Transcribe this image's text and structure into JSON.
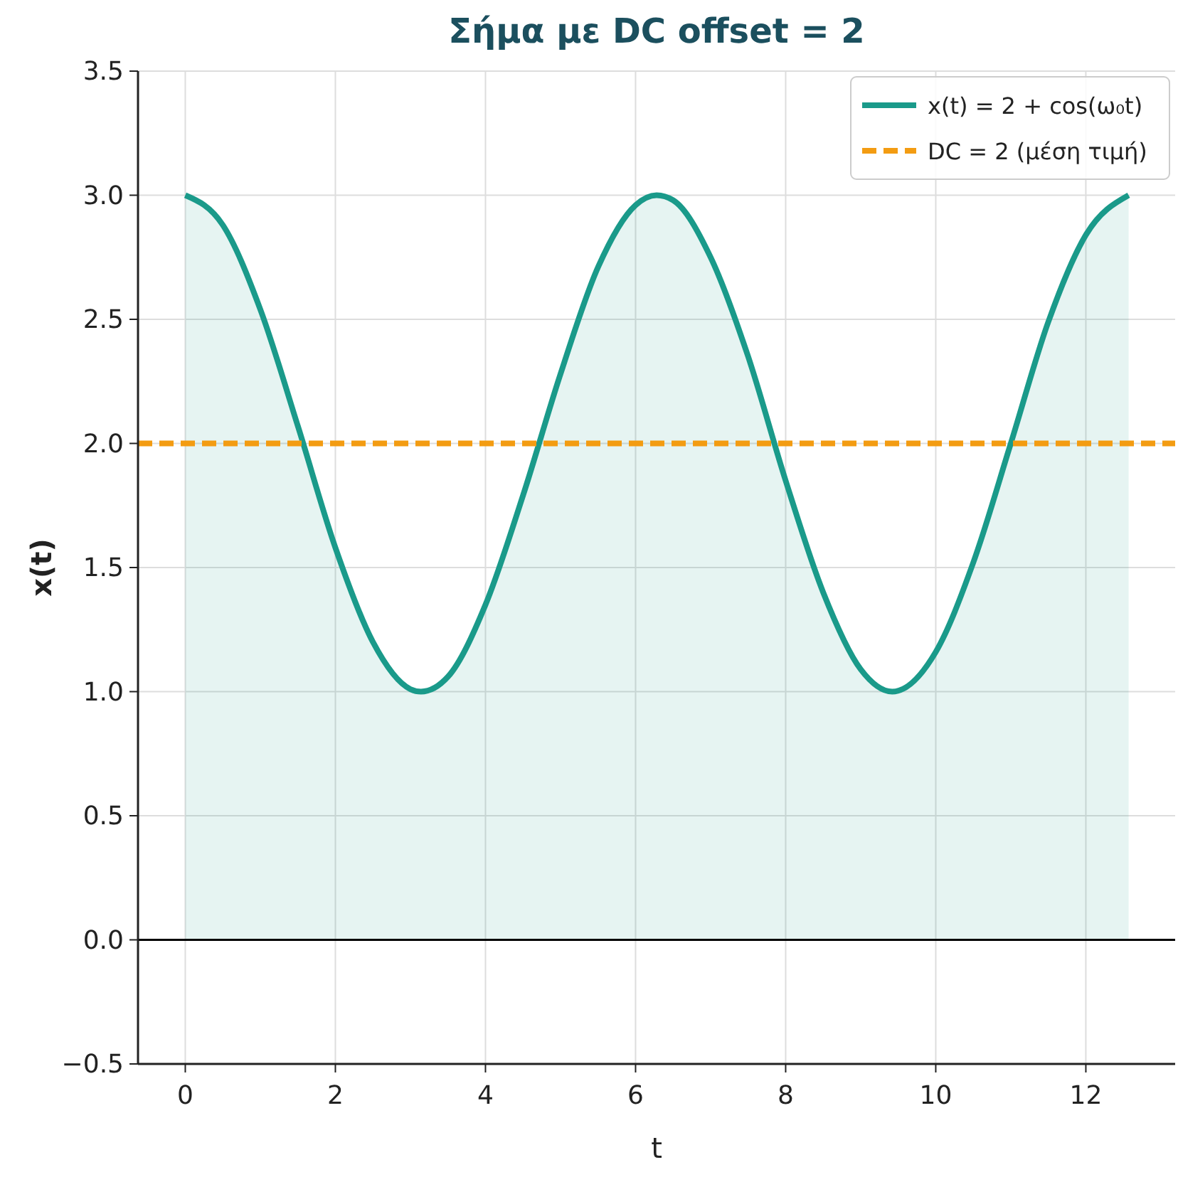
{
  "chart_data": {
    "type": "area",
    "title": "Σήμα με DC offset = 2",
    "xlabel": "t",
    "ylabel": "x(t)",
    "xlim": [
      -0.63,
      13.19
    ],
    "xticks": [
      0,
      2,
      4,
      6,
      8,
      10,
      12
    ],
    "ylim": [
      -0.5,
      3.5
    ],
    "yticks": [
      {
        "value": -0.5,
        "label": "−0.5"
      },
      {
        "value": 0,
        "label": "0.0"
      },
      {
        "value": 0.5,
        "label": "0.5"
      },
      {
        "value": 1,
        "label": "1.0"
      },
      {
        "value": 1.5,
        "label": "1.5"
      },
      {
        "value": 2,
        "label": "2.0"
      },
      {
        "value": 2.5,
        "label": "2.5"
      },
      {
        "value": 3,
        "label": "3.0"
      },
      {
        "value": 3.5,
        "label": "3.5"
      }
    ],
    "grid": true,
    "legend": "top right",
    "series": [
      {
        "name": "x(t) = 2 + cos(ω₀t)",
        "color": "#1a9a8a",
        "x": [
          0,
          0.5,
          1,
          1.5,
          2,
          2.5,
          3,
          3.14,
          3.5,
          4,
          4.5,
          5,
          5.5,
          6,
          6.28,
          6.5,
          7,
          7.5,
          8,
          8.5,
          9,
          9.42,
          10,
          10.5,
          11,
          11.5,
          12,
          12.57
        ],
        "values": [
          3.0,
          2.88,
          2.54,
          2.07,
          1.58,
          1.2,
          1.01,
          1.0,
          1.06,
          1.35,
          1.79,
          2.28,
          2.71,
          2.96,
          3.0,
          2.98,
          2.75,
          2.35,
          1.85,
          1.4,
          1.09,
          1.0,
          1.16,
          1.52,
          2.0,
          2.49,
          2.84,
          3.0
        ]
      }
    ],
    "ref_lines": [
      {
        "axis": "y",
        "value": 2,
        "label": "DC = 2 (μέση τιμή)",
        "color": "#f39c12",
        "line_style": "dashed"
      },
      {
        "axis": "y",
        "value": 0,
        "color": "#000000",
        "line_style": "solid"
      }
    ]
  }
}
